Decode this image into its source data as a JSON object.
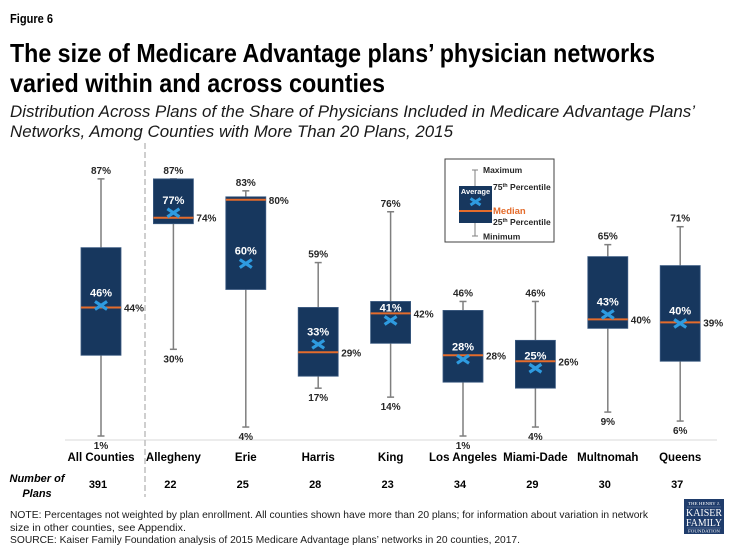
{
  "figure_label": "Figure 6",
  "title": {
    "line1": "The size of Medicare Advantage plans’ physician networks",
    "line2": "varied within and across counties"
  },
  "subtitle": {
    "line1": "Distribution Across Plans of the Share of Physicians Included in Medicare Advantage Plans’",
    "line2": "Networks, Among Counties with More Than 20 Plans, 2015"
  },
  "number_of_plans_label": {
    "line1": "Number of",
    "line2": "Plans"
  },
  "notes": {
    "note_line1": "NOTE: Percentages not weighted by plan enrollment. All counties shown have more than 20 plans; for information about variation in network",
    "note_line2": "size in other counties, see Appendix.",
    "source": "SOURCE: Kaiser Family Foundation analysis of 2015 Medicare Advantage plans’ networks in 20 counties, 2017."
  },
  "logo": {
    "line1": "THE HENRY J.",
    "line2": "KAISER",
    "line3": "FAMILY",
    "line4": "FOUNDATION"
  },
  "colors": {
    "box_fill": "#17375e",
    "box_stroke": "#3c5b82",
    "median_line": "#e46c2c",
    "mean_marker": "#2e9be0",
    "whisker": "#7f7f7f",
    "label_text": "#262626",
    "divider": "#bfbfbf",
    "baseline": "#d9d9d9",
    "logo_bg": "#1f3c6b"
  },
  "chart_data": {
    "type": "boxplot",
    "title": "The size of Medicare Advantage plans’ physician networks varied within and across counties",
    "subtitle": "Distribution Across Plans of the Share of Physicians Included in Medicare Advantage Plans’ Networks, Among Counties with More Than 20 Plans, 2015",
    "xlabel": "",
    "ylabel": "",
    "ylim": [
      0,
      100
    ],
    "value_format": "percent",
    "y_axis_visible": false,
    "grid": false,
    "legend_position": "top-right",
    "divider_after_category": "All Counties",
    "labels_shown": [
      "max",
      "min",
      "mean",
      "median"
    ],
    "categories": [
      "All Counties",
      "Allegheny",
      "Erie",
      "Harris",
      "King",
      "Los Angeles",
      "Miami-Dade",
      "Multnomah",
      "Queens"
    ],
    "boxes": [
      {
        "category": "All Counties",
        "n_plans": 391,
        "min": 1,
        "q1": 28,
        "median": 44,
        "mean": 46,
        "q3": 64,
        "max": 87
      },
      {
        "category": "Allegheny",
        "n_plans": 22,
        "min": 30,
        "q1": 72,
        "median": 74,
        "mean": 77,
        "q3": 87,
        "max": 87
      },
      {
        "category": "Erie",
        "n_plans": 25,
        "min": 4,
        "q1": 50,
        "median": 80,
        "mean": 60,
        "q3": 81,
        "max": 83
      },
      {
        "category": "Harris",
        "n_plans": 28,
        "min": 17,
        "q1": 21,
        "median": 29,
        "mean": 33,
        "q3": 44,
        "max": 59
      },
      {
        "category": "King",
        "n_plans": 23,
        "min": 14,
        "q1": 32,
        "median": 42,
        "mean": 41,
        "q3": 46,
        "max": 76
      },
      {
        "category": "Los Angeles",
        "n_plans": 34,
        "min": 1,
        "q1": 19,
        "median": 28,
        "mean": 28,
        "q3": 43,
        "max": 46
      },
      {
        "category": "Miami-Dade",
        "n_plans": 29,
        "min": 4,
        "q1": 17,
        "median": 26,
        "mean": 25,
        "q3": 33,
        "max": 46
      },
      {
        "category": "Multnomah",
        "n_plans": 30,
        "min": 9,
        "q1": 37,
        "median": 40,
        "mean": 43,
        "q3": 61,
        "max": 65
      },
      {
        "category": "Queens",
        "n_plans": 37,
        "min": 6,
        "q1": 26,
        "median": 39,
        "mean": 40,
        "q3": 58,
        "max": 71
      }
    ],
    "legend": {
      "maximum": "Maximum",
      "q3": {
        "num": "75",
        "sup": "th",
        "text": " Percentile"
      },
      "average": "Average",
      "median": "Median",
      "q1": {
        "num": "25",
        "sup": "th",
        "text": " Percentile"
      },
      "minimum": "Minimum"
    }
  }
}
